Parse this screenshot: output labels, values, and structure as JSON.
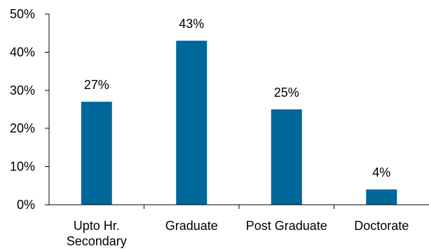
{
  "chart_data": {
    "type": "bar",
    "categories": [
      [
        "Upto Hr.",
        "Secondary"
      ],
      [
        "Graduate"
      ],
      [
        "Post Graduate"
      ],
      [
        "Doctorate"
      ]
    ],
    "values": [
      27,
      43,
      25,
      4
    ],
    "data_labels": [
      "27%",
      "43%",
      "25%",
      "4%"
    ],
    "ylim": [
      0,
      50
    ],
    "yticks": [
      0,
      10,
      20,
      30,
      40,
      50
    ],
    "ytick_labels": [
      "0%",
      "10%",
      "20%",
      "30%",
      "40%",
      "50%"
    ],
    "grid": false,
    "bar_color": "#00679A"
  }
}
